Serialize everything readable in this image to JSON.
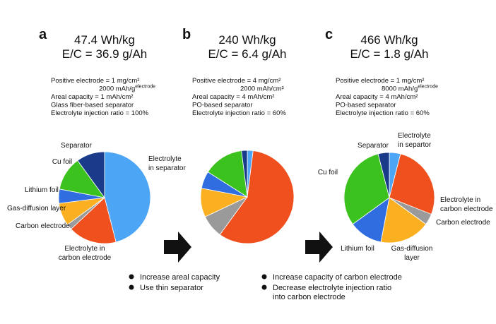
{
  "chart_data": [
    {
      "type": "pie",
      "panel": "a",
      "title": "47.4 Wh/kg",
      "subtitle": "E/C =  36.9 g/Ah",
      "notes": [
        {
          "text": "Positive electrode = 1 mg/cm²"
        },
        {
          "text": "2000 mAh/g",
          "sup": "electrode"
        },
        {
          "text": "Areal capacity = 1 mAh/cm²"
        },
        {
          "text": "Glass fiber-based separator"
        },
        {
          "text": "Electrolyte injection ratio = 100%"
        }
      ],
      "categories": [
        "Electrolyte\nin separator",
        "Electrolyte in\ncarbon electrode",
        "Carbon electrode",
        "Gas-diffusion layer",
        "Lithium foil",
        "Cu foil",
        "Separator"
      ],
      "values": [
        46,
        17,
        2,
        8,
        5,
        12,
        10
      ],
      "colors": [
        "#4da6f5",
        "#f0501e",
        "#9a9a9a",
        "#fbb021",
        "#2f6de0",
        "#3cc21e",
        "#1a3a8a"
      ]
    },
    {
      "type": "pie",
      "panel": "b",
      "title": "240 Wh/kg",
      "subtitle": "E/C = 6.4 g/Ah",
      "notes": [
        {
          "text": "Positive electrode = 4 mg/cm²"
        },
        {
          "text": "2000 mAh/cm²"
        },
        {
          "text": "Areal capacity = 4 mAh/cm²"
        },
        {
          "text": "PO-based separator"
        },
        {
          "text": "Electrolyte injection ratio = 60%"
        }
      ],
      "values": [
        2,
        58,
        8,
        10,
        6,
        14,
        2
      ],
      "colors": [
        "#4da6f5",
        "#f0501e",
        "#9a9a9a",
        "#fbb021",
        "#2f6de0",
        "#3cc21e",
        "#1a3a8a"
      ]
    },
    {
      "type": "pie",
      "panel": "c",
      "title": "466 Wh/kg",
      "subtitle": "E/C = 1.8 g/Ah",
      "notes": [
        {
          "text": "Positive electrode = 1 mg/cm²"
        },
        {
          "text": "8000 mAh/g",
          "sup": "electrode"
        },
        {
          "text": "Areal capacity = 4 mAh/cm²"
        },
        {
          "text": "PO-based separator"
        },
        {
          "text": "Electrolyte injection ratio = 60%"
        }
      ],
      "categories": [
        "Electrolyte\nin separtor",
        "Electrolyte in\ncarbon electrode",
        "Carbon electrode",
        "Gas-diffusion\nlayer",
        "Lithium foil",
        "Cu foil",
        "Separator"
      ],
      "values": [
        4,
        27,
        4,
        18,
        12,
        31,
        4
      ],
      "colors": [
        "#4da6f5",
        "#f0501e",
        "#9a9a9a",
        "#fbb021",
        "#2f6de0",
        "#3cc21e",
        "#1a3a8a"
      ]
    }
  ],
  "bullets": [
    [
      "Increase areal capacity",
      "Use thin separator"
    ],
    [
      "Increase capacity of carbon electrode",
      "Decrease electrolyte injection ratio\ninto carbon electrode"
    ]
  ]
}
